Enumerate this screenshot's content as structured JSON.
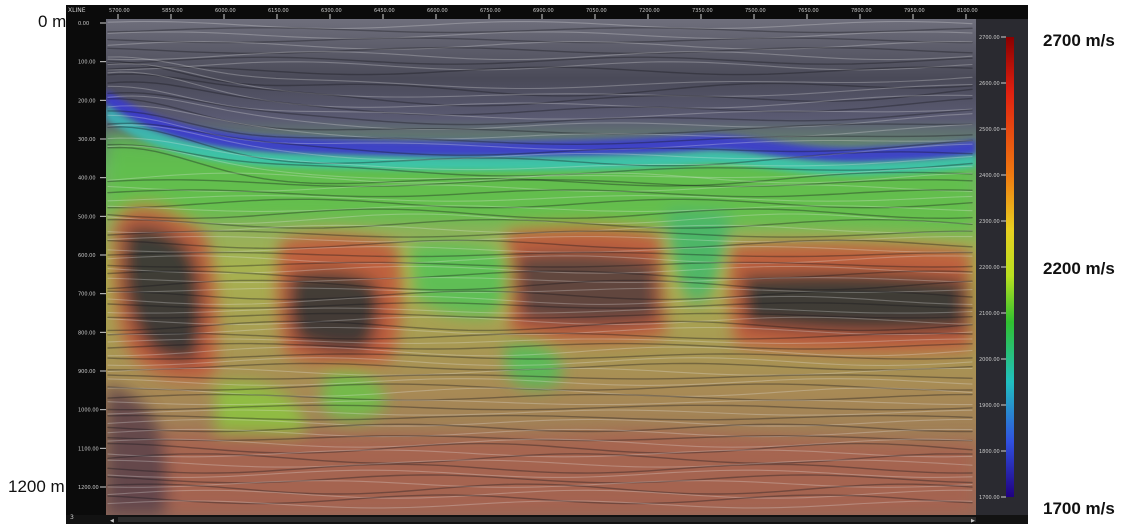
{
  "depth_axis": {
    "top": "0 m",
    "bottom": "1200 m"
  },
  "velocity_scale": {
    "max": "2700 m/s",
    "mid": "2200 m/s",
    "min": "1700 m/s"
  },
  "section": {
    "xline_label": "XLINE",
    "bottom_number": "3",
    "inline_ticks": [
      "5700.00",
      "5850.00",
      "6000.00",
      "6150.00",
      "6300.00",
      "6450.00",
      "6600.00",
      "6750.00",
      "6900.00",
      "7050.00",
      "7200.00",
      "7350.00",
      "7500.00",
      "7650.00",
      "7800.00",
      "7950.00",
      "8100.00"
    ],
    "depth_ticks": [
      "0.00",
      "100.00",
      "200.00",
      "300.00",
      "400.00",
      "500.00",
      "600.00",
      "700.00",
      "800.00",
      "900.00",
      "1000.00",
      "1100.00",
      "1200.00"
    ],
    "colorbar_ticks": [
      "2700.00",
      "2600.00",
      "2500.00",
      "2400.00",
      "2300.00",
      "2200.00",
      "2100.00",
      "2000.00",
      "1900.00",
      "1800.00",
      "1700.00"
    ]
  },
  "colors": {
    "shallow": "#5a5a6a",
    "blue_band": "#3a3acb",
    "cyan_band": "#35c3c8",
    "green": "#5fc24a",
    "yellow": "#c9c64a",
    "red": "#c4523a",
    "dark": "#2b2830"
  }
}
